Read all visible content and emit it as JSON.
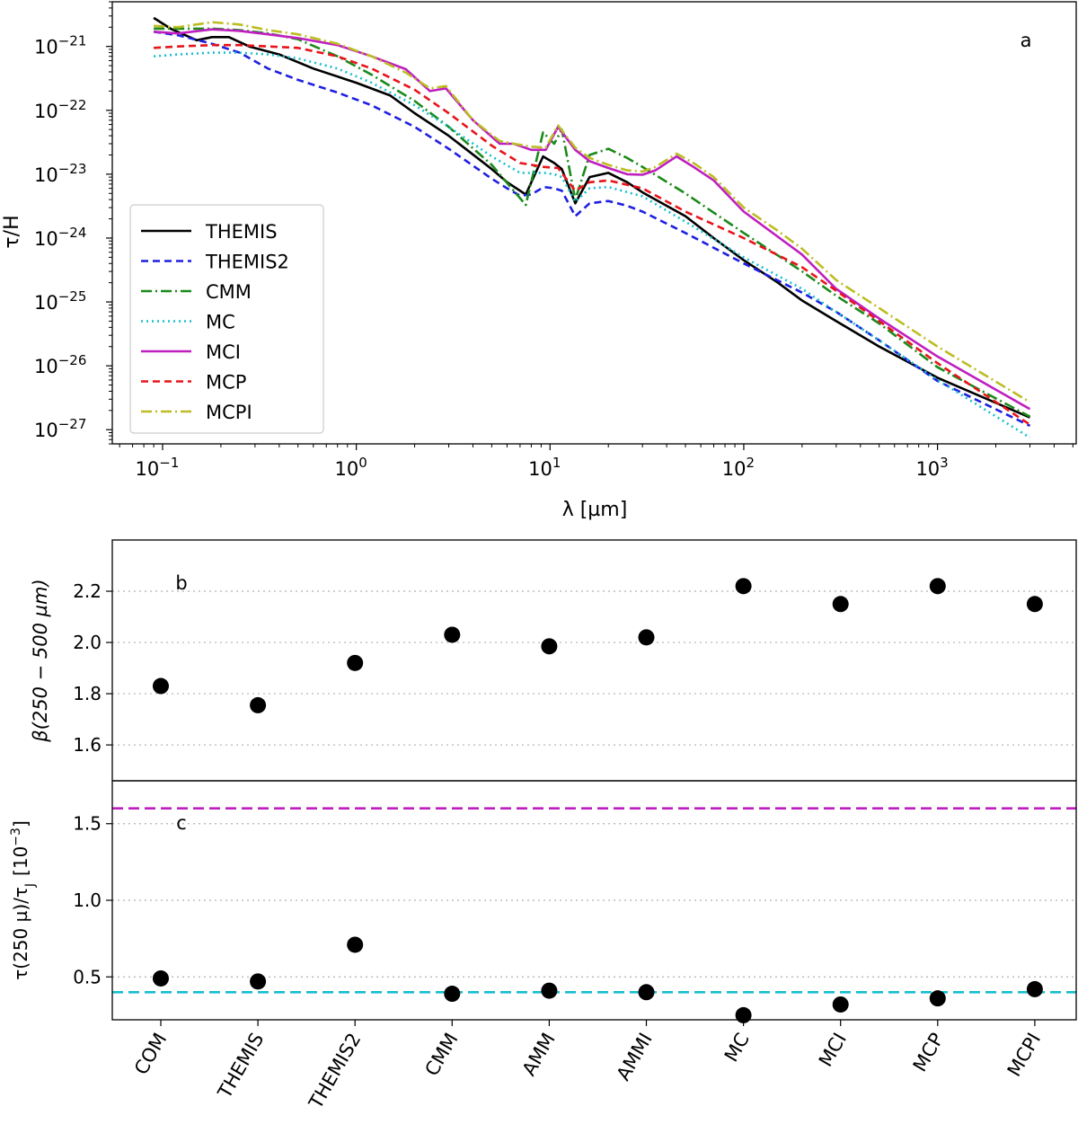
{
  "chart_data": [
    {
      "type": "line",
      "panel_label": "a",
      "xscale": "log",
      "yscale": "log",
      "xlabel": "λ [µm]",
      "ylabel": "τ/H",
      "xlim": [
        0.055,
        5200
      ],
      "ylim": [
        6e-28,
        5e-21
      ],
      "xtick_labels": [
        {
          "base": "10",
          "exp": "−1",
          "value": 0.1
        },
        {
          "base": "10",
          "exp": "0",
          "value": 1
        },
        {
          "base": "10",
          "exp": "1",
          "value": 10
        },
        {
          "base": "10",
          "exp": "2",
          "value": 100
        },
        {
          "base": "10",
          "exp": "3",
          "value": 1000
        }
      ],
      "ytick_labels": [
        {
          "base": "10",
          "exp": "−21",
          "value": 1e-21
        },
        {
          "base": "10",
          "exp": "−22",
          "value": 1e-22
        },
        {
          "base": "10",
          "exp": "−23",
          "value": 1e-23
        },
        {
          "base": "10",
          "exp": "−24",
          "value": 1e-24
        },
        {
          "base": "10",
          "exp": "−25",
          "value": 1e-25
        },
        {
          "base": "10",
          "exp": "−26",
          "value": 1e-26
        },
        {
          "base": "10",
          "exp": "−27",
          "value": 1e-27
        }
      ],
      "legend_location": "lower-left",
      "series": [
        {
          "name": "THEMIS",
          "color": "#000000",
          "dash": "solid",
          "x": [
            0.09,
            0.11,
            0.15,
            0.18,
            0.22,
            0.28,
            0.4,
            0.6,
            1.0,
            1.5,
            2.0,
            3.0,
            5.0,
            6.0,
            7.5,
            9.2,
            10.5,
            11.5,
            13.5,
            16,
            20,
            25,
            30,
            50,
            70,
            100,
            150,
            200,
            300,
            500,
            1000,
            3000
          ],
          "y": [
            2.8e-21,
            1.9e-21,
            1.25e-21,
            1.4e-21,
            1.4e-21,
            1e-21,
            7.5e-22,
            4.5e-22,
            2.7e-22,
            1.7e-22,
            9e-23,
            4e-23,
            1.2e-23,
            7.5e-24,
            4.8e-24,
            1.9e-23,
            1.5e-23,
            1.2e-23,
            3.5e-24,
            9e-24,
            1.05e-23,
            7.5e-24,
            5.2e-24,
            2.2e-24,
            1e-24,
            4.5e-25,
            2e-25,
            1.05e-25,
            5e-26,
            2e-26,
            6.5e-27,
            1.55e-27
          ]
        },
        {
          "name": "THEMIS2",
          "color": "#1f1fe0",
          "dash": "8,5",
          "x": [
            0.09,
            0.12,
            0.18,
            0.25,
            0.35,
            0.5,
            0.8,
            1.2,
            2.0,
            3.0,
            5.0,
            6.0,
            7.0,
            8.0,
            9.3,
            10.5,
            11.5,
            13.5,
            16,
            20,
            25,
            30,
            50,
            100,
            200,
            300,
            500,
            1000,
            3000
          ],
          "y": [
            1.7e-21,
            1.5e-21,
            1.1e-21,
            8e-22,
            4.5e-22,
            3e-22,
            1.9e-22,
            1.2e-22,
            5.5e-23,
            2.5e-23,
            8.5e-24,
            6e-24,
            4.6e-24,
            4.8e-24,
            6.3e-24,
            6e-24,
            5.5e-24,
            2.2e-24,
            3.5e-24,
            3.8e-24,
            3.2e-24,
            2.6e-24,
            1.2e-24,
            4e-25,
            1.4e-25,
            7e-26,
            2.5e-26,
            5.8e-27,
            1.15e-27
          ]
        },
        {
          "name": "CMM",
          "color": "#1a8a1a",
          "dash": "12,4,2,4",
          "x": [
            0.09,
            0.12,
            0.18,
            0.25,
            0.35,
            0.5,
            0.8,
            1.2,
            2.0,
            3.0,
            5.0,
            7.5,
            9.2,
            10.5,
            11.5,
            13.5,
            16,
            20,
            25,
            30,
            50,
            100,
            200,
            300,
            500,
            1000,
            3000
          ],
          "y": [
            1.9e-21,
            1.9e-21,
            1.9e-21,
            1.8e-21,
            1.6e-21,
            1.3e-21,
            7e-22,
            3.6e-22,
            1.4e-22,
            5.5e-23,
            1.4e-23,
            3.3e-24,
            4.5e-23,
            3e-23,
            5e-23,
            4e-24,
            2e-23,
            2.5e-23,
            1.8e-23,
            1.3e-23,
            5e-24,
            1.2e-24,
            3e-25,
            1.25e-25,
            4.6e-26,
            9.5e-27,
            1.6e-27
          ]
        },
        {
          "name": "MC",
          "color": "#17becf",
          "dash": "2,4",
          "x": [
            0.09,
            0.12,
            0.18,
            0.25,
            0.35,
            0.5,
            0.8,
            1.2,
            2.0,
            3.0,
            5.0,
            7.0,
            9.3,
            10.5,
            11.5,
            13.5,
            16,
            20,
            30,
            50,
            100,
            200,
            300,
            500,
            1000,
            3000
          ],
          "y": [
            7e-22,
            7.5e-22,
            8e-22,
            8e-22,
            7.5e-22,
            6.5e-22,
            4.5e-22,
            2.7e-22,
            1.2e-22,
            5.5e-23,
            1.9e-23,
            1.05e-23,
            1.05e-23,
            1e-23,
            9e-24,
            3.7e-24,
            6e-24,
            6.3e-24,
            4.5e-24,
            1.8e-24,
            5e-25,
            1.6e-25,
            7e-26,
            2.5e-26,
            6e-27,
            7.5e-28
          ]
        },
        {
          "name": "MCI",
          "color": "#bf1fbf",
          "dash": "solid",
          "x": [
            0.09,
            0.12,
            0.18,
            0.25,
            0.35,
            0.5,
            0.8,
            1.2,
            1.8,
            2.4,
            2.9,
            4.0,
            5.5,
            6.5,
            8.0,
            9.5,
            11,
            13.5,
            16,
            20,
            25,
            30,
            35,
            45,
            55,
            70,
            100,
            150,
            200,
            300,
            500,
            1000,
            3000
          ],
          "y": [
            1.7e-21,
            1.6e-21,
            1.85e-21,
            1.75e-21,
            1.55e-21,
            1.35e-21,
            1.05e-21,
            7e-22,
            4.4e-22,
            2e-22,
            2.2e-22,
            7e-23,
            3e-23,
            3e-23,
            2.4e-23,
            2.4e-23,
            5.5e-23,
            2.4e-23,
            1.6e-23,
            1.25e-23,
            1e-23,
            9.8e-24,
            1.15e-23,
            1.9e-23,
            1.3e-23,
            8e-24,
            2.6e-24,
            1.05e-24,
            5.5e-25,
            1.6e-25,
            5.5e-26,
            1.4e-26,
            2.1e-27
          ]
        },
        {
          "name": "MCP",
          "color": "#e8141a",
          "dash": "8,5",
          "x": [
            0.09,
            0.12,
            0.18,
            0.25,
            0.35,
            0.5,
            0.8,
            1.2,
            2.0,
            3.0,
            5.0,
            7.0,
            9.3,
            11,
            13.5,
            16,
            20,
            30,
            50,
            100,
            200,
            300,
            500,
            1000,
            3000
          ],
          "y": [
            9.5e-22,
            1e-21,
            1.05e-21,
            1.05e-21,
            1e-21,
            9.5e-22,
            7e-22,
            4.5e-22,
            2.1e-22,
            9e-23,
            2.8e-23,
            1.5e-23,
            1.3e-23,
            1.25e-23,
            5.5e-24,
            7.5e-24,
            8e-24,
            6e-24,
            2.6e-24,
            1e-24,
            3.5e-25,
            1.5e-25,
            5e-26,
            1.1e-26,
            1.2e-27
          ]
        },
        {
          "name": "MCPI",
          "color": "#bcbd22",
          "dash": "12,4,2,4",
          "x": [
            0.09,
            0.12,
            0.18,
            0.25,
            0.35,
            0.5,
            0.8,
            1.2,
            1.8,
            2.4,
            2.9,
            4.0,
            5.5,
            6.5,
            8.0,
            9.5,
            11,
            13.5,
            16,
            20,
            25,
            30,
            35,
            45,
            55,
            70,
            100,
            150,
            200,
            300,
            500,
            1000,
            3000
          ],
          "y": [
            2.1e-21,
            2e-21,
            2.4e-21,
            2.2e-21,
            1.8e-21,
            1.55e-21,
            1.1e-21,
            7e-22,
            3.9e-22,
            2.2e-22,
            2.4e-22,
            7e-23,
            3.3e-23,
            3e-23,
            2.7e-23,
            2.6e-23,
            5.8e-23,
            2.6e-23,
            1.8e-23,
            1.4e-23,
            1.15e-23,
            1.1e-23,
            1.3e-23,
            2.1e-23,
            1.5e-23,
            9e-24,
            3e-24,
            1.3e-24,
            6.8e-25,
            2.2e-25,
            8e-26,
            2e-26,
            2.7e-27
          ]
        }
      ]
    },
    {
      "type": "scatter",
      "panel_label": "b",
      "ylabel": "β(250 − 500 µm)",
      "ylim": [
        1.46,
        2.4
      ],
      "yticks": [
        "1.6",
        "1.8",
        "2.0",
        "2.2"
      ],
      "grid": "horizontal dotted",
      "categories": [
        "COM",
        "THEMIS",
        "THEMIS2",
        "CMM",
        "AMM",
        "AMMI",
        "MC",
        "MCI",
        "MCP",
        "MCPI"
      ],
      "values": [
        1.83,
        1.755,
        1.92,
        2.03,
        1.985,
        2.02,
        2.22,
        2.15,
        2.22,
        2.15
      ]
    },
    {
      "type": "scatter",
      "panel_label": "c",
      "ylabel": "τ(250 µ)/τ",
      "ylabel_subscript": "J",
      "ylabel_unit": "[10",
      "ylabel_unit_exp": "−3",
      "ylabel_unit_end": "]",
      "ylim": [
        0.22,
        1.78
      ],
      "yticks": [
        "0.5",
        "1.0",
        "1.5"
      ],
      "grid": "horizontal dotted",
      "categories": [
        "COM",
        "THEMIS",
        "THEMIS2",
        "CMM",
        "AMM",
        "AMMI",
        "MC",
        "MCI",
        "MCP",
        "MCPI"
      ],
      "values": [
        0.49,
        0.47,
        0.71,
        0.39,
        0.41,
        0.4,
        0.25,
        0.32,
        0.36,
        0.42
      ],
      "reference_lines": [
        {
          "value": 1.6,
          "color": "#bf1fbf"
        },
        {
          "value": 0.4,
          "color": "#17becf"
        }
      ]
    }
  ]
}
